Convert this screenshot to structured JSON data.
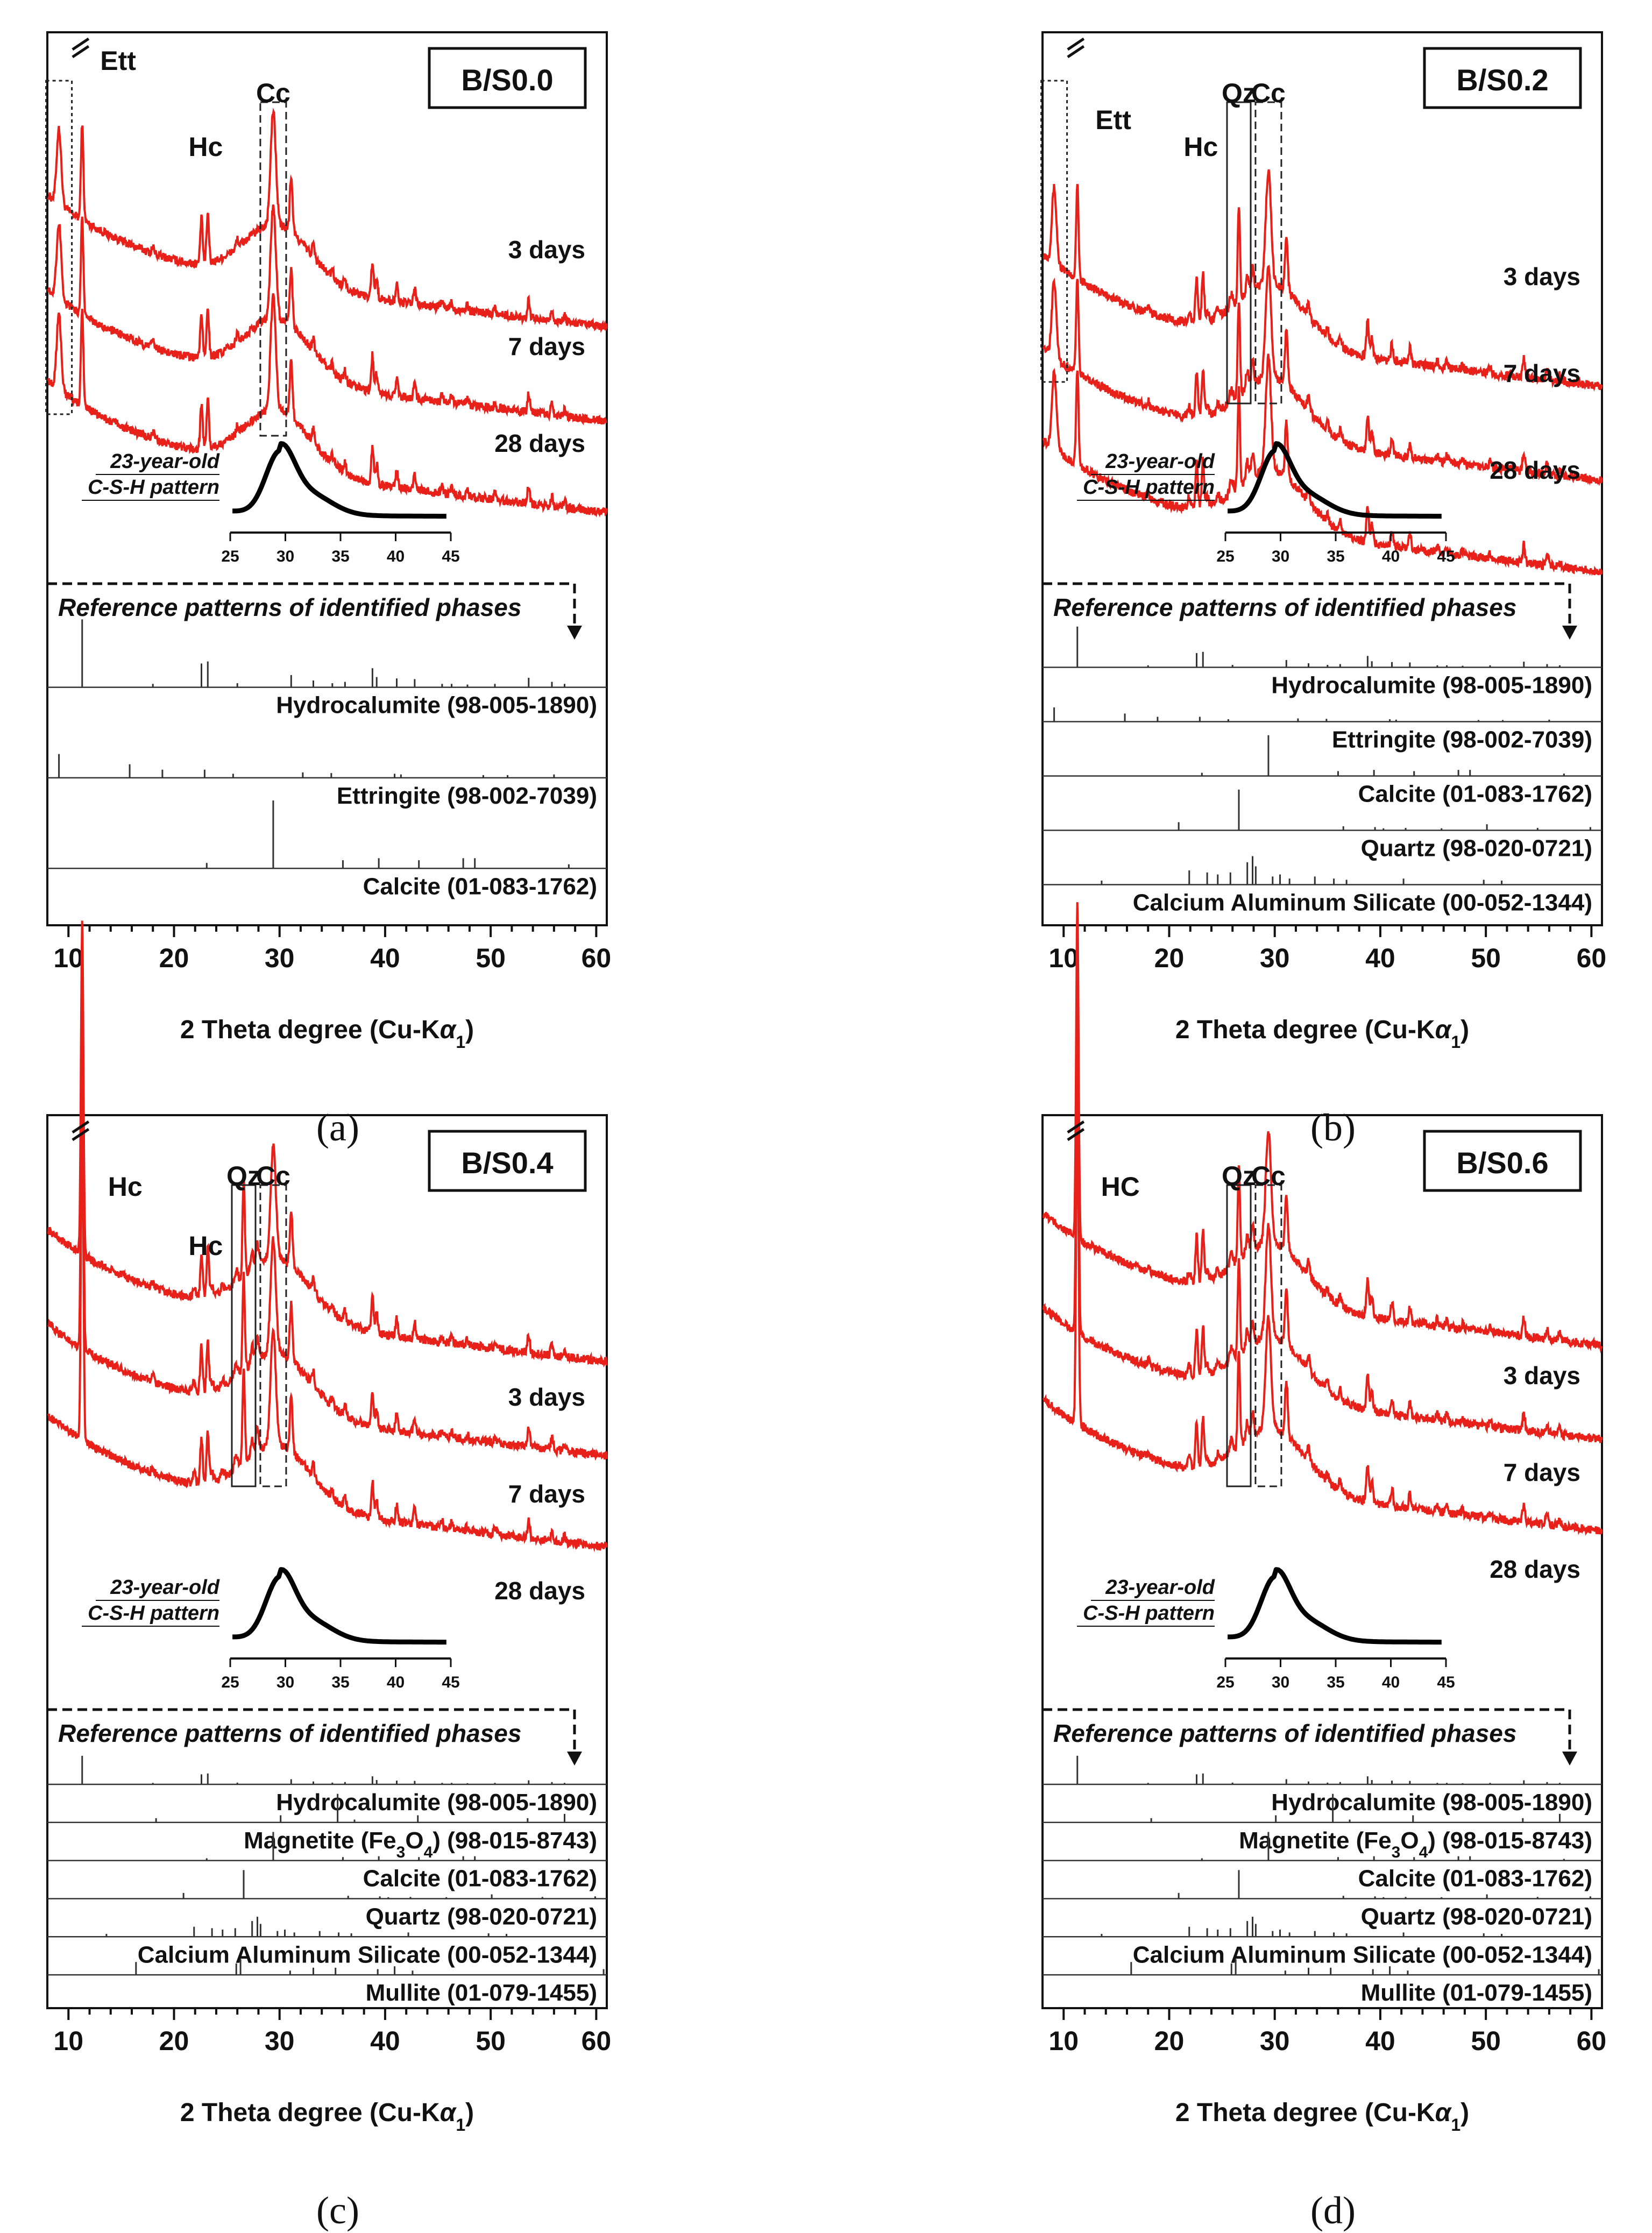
{
  "figure": {
    "xlabel_main": "2 Theta degree (Cu-K",
    "xlabel_alpha": "α",
    "xlabel_sub": "1",
    "xlabel_close": ")",
    "x_ticks": [
      10,
      20,
      30,
      40,
      50,
      60
    ],
    "inset_ticks": [
      25,
      30,
      35,
      40,
      45
    ],
    "inset_label_line1": "23-year-old",
    "inset_label_line2": "C-S-H pattern",
    "reference_header": "Reference patterns of identified phases",
    "trace_color": "#e8201a",
    "reference_color": "#333333"
  },
  "chart_data": [
    {
      "type": "line",
      "panel": "a",
      "caption": "(a)",
      "title": "B/S0.0",
      "xlim": [
        8,
        61
      ],
      "series": [
        {
          "name": "3 days",
          "label": "3 days"
        },
        {
          "name": "7 days",
          "label": "7 days"
        },
        {
          "name": "28 days",
          "label": "28 days"
        }
      ],
      "annotations": [
        {
          "text": "Ett",
          "two_theta": 9.1,
          "box": "dotted"
        },
        {
          "text": "Hc",
          "two_theta": 23.0
        },
        {
          "text": "Cc",
          "two_theta": 29.4,
          "box": "dashed"
        }
      ],
      "references": [
        {
          "name": "Hydrocalumite",
          "code": "98-005-1890"
        },
        {
          "name": "Ettringite",
          "code": "98-002-7039"
        },
        {
          "name": "Calcite",
          "code": "01-083-1762"
        }
      ]
    },
    {
      "type": "line",
      "panel": "b",
      "caption": "(b)",
      "title": "B/S0.2",
      "xlim": [
        8,
        61
      ],
      "series": [
        {
          "name": "3 days",
          "label": "3 days"
        },
        {
          "name": "7 days",
          "label": "7 days"
        },
        {
          "name": "28 days",
          "label": "28 days"
        }
      ],
      "annotations": [
        {
          "text": "Ett",
          "two_theta": 9.1,
          "box": "dotted"
        },
        {
          "text": "Hc",
          "two_theta": 23.0
        },
        {
          "text": "Qz",
          "two_theta": 26.6,
          "box": "solid"
        },
        {
          "text": "Cc",
          "two_theta": 29.4,
          "box": "dashed"
        }
      ],
      "references": [
        {
          "name": "Hydrocalumite",
          "code": "98-005-1890"
        },
        {
          "name": "Ettringite",
          "code": "98-002-7039"
        },
        {
          "name": "Calcite",
          "code": "01-083-1762"
        },
        {
          "name": "Quartz",
          "code": "98-020-0721"
        },
        {
          "name": "Calcium  Aluminum  Silicate",
          "code": "00-052-1344"
        }
      ]
    },
    {
      "type": "line",
      "panel": "c",
      "caption": "(c)",
      "title": "B/S0.4",
      "xlim": [
        8,
        61
      ],
      "series": [
        {
          "name": "3 days",
          "label": "3 days"
        },
        {
          "name": "7 days",
          "label": "7 days"
        },
        {
          "name": "28 days",
          "label": "28 days"
        }
      ],
      "annotations": [
        {
          "text": "Hc",
          "two_theta": 11.3
        },
        {
          "text": "Hc",
          "two_theta": 23.0
        },
        {
          "text": "Qz",
          "two_theta": 26.6,
          "box": "solid"
        },
        {
          "text": "Cc",
          "two_theta": 29.4,
          "box": "dashed"
        }
      ],
      "references": [
        {
          "name": "Hydrocalumite",
          "code": "98-005-1890"
        },
        {
          "name": "Magnetite (Fe3O4)",
          "code": "98-015-8743"
        },
        {
          "name": "Calcite",
          "code": "01-083-1762"
        },
        {
          "name": "Quartz",
          "code": "98-020-0721"
        },
        {
          "name": "Calcium  Aluminum  Silicate",
          "code": "00-052-1344"
        },
        {
          "name": "Mullite",
          "code": "01-079-1455"
        }
      ]
    },
    {
      "type": "line",
      "panel": "d",
      "caption": "(d)",
      "title": "B/S0.6",
      "xlim": [
        8,
        61
      ],
      "series": [
        {
          "name": "3 days",
          "label": "3 days"
        },
        {
          "name": "7 days",
          "label": "7 days"
        },
        {
          "name": "28 days",
          "label": "28 days"
        }
      ],
      "annotations": [
        {
          "text": "HC",
          "two_theta": 11.3
        },
        {
          "text": "Qz",
          "two_theta": 26.6,
          "box": "solid"
        },
        {
          "text": "Cc",
          "two_theta": 29.4,
          "box": "dashed"
        }
      ],
      "references": [
        {
          "name": "Hydrocalumite",
          "code": "98-005-1890"
        },
        {
          "name": "Magnetite (Fe3O4)",
          "code": "98-015-8743"
        },
        {
          "name": "Calcite",
          "code": "01-083-1762"
        },
        {
          "name": "Quartz",
          "code": "98-020-0721"
        },
        {
          "name": "Calcium  Aluminum  Silicate",
          "code": "00-052-1344"
        },
        {
          "name": "Mullite",
          "code": "01-079-1455"
        }
      ]
    }
  ]
}
